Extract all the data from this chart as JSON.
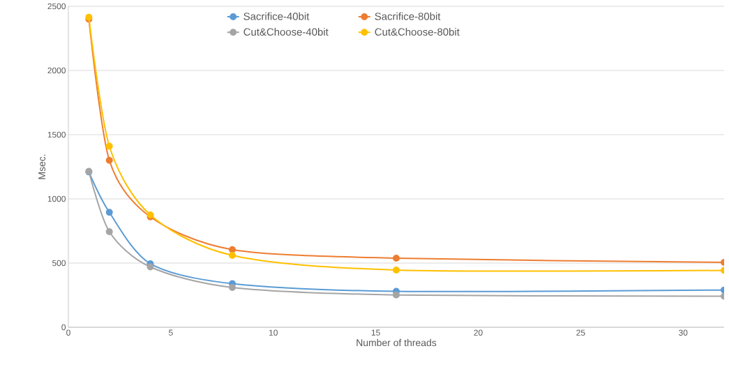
{
  "chart_data": {
    "type": "line",
    "xlabel": "Number of threads",
    "ylabel": "Msec.",
    "x": [
      1,
      2,
      4,
      8,
      16,
      32
    ],
    "series": [
      {
        "name": "Sacrifice-40bit",
        "color": "#5b9bd5",
        "values": [
          1210,
          895,
          495,
          340,
          280,
          290
        ]
      },
      {
        "name": "Sacrifice-80bit",
        "color": "#ed7d31",
        "values": [
          2400,
          1300,
          860,
          605,
          538,
          505
        ]
      },
      {
        "name": "Cut&Choose-40bit",
        "color": "#a5a5a5",
        "values": [
          1215,
          745,
          470,
          310,
          252,
          242
        ]
      },
      {
        "name": "Cut&Choose-80bit",
        "color": "#ffc000",
        "values": [
          2415,
          1410,
          875,
          560,
          446,
          443
        ]
      }
    ],
    "xlim": [
      0,
      32
    ],
    "xticks": [
      0,
      5,
      10,
      15,
      20,
      25,
      30
    ],
    "ylim": [
      0,
      2500
    ],
    "yticks": [
      0,
      500,
      1000,
      1500,
      2000,
      2500
    ],
    "grid": "y",
    "legend": "top",
    "marker": "circle",
    "line_style": "solid"
  }
}
